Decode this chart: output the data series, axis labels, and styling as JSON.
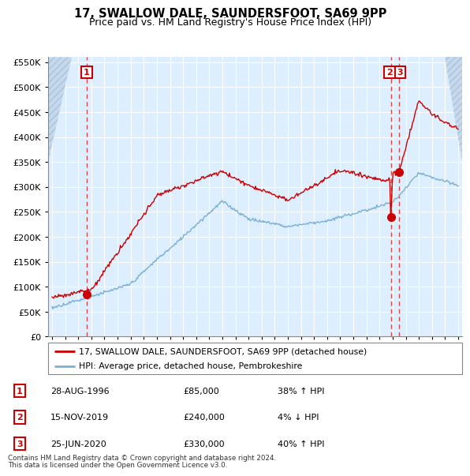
{
  "title": "17, SWALLOW DALE, SAUNDERSFOOT, SA69 9PP",
  "subtitle": "Price paid vs. HM Land Registry's House Price Index (HPI)",
  "legend_line1": "17, SWALLOW DALE, SAUNDERSFOOT, SA69 9PP (detached house)",
  "legend_line2": "HPI: Average price, detached house, Pembrokeshire",
  "footer1": "Contains HM Land Registry data © Crown copyright and database right 2024.",
  "footer2": "This data is licensed under the Open Government Licence v3.0.",
  "sales": [
    {
      "label": "1",
      "date_str": "28-AUG-1996",
      "price": 85000,
      "hpi_rel": "38% ↑ HPI",
      "year": 1996.65
    },
    {
      "label": "2",
      "date_str": "15-NOV-2019",
      "price": 240000,
      "hpi_rel": "4% ↓ HPI",
      "year": 2019.87
    },
    {
      "label": "3",
      "date_str": "25-JUN-2020",
      "price": 330000,
      "hpi_rel": "40% ↑ HPI",
      "year": 2020.48
    }
  ],
  "ylim": [
    0,
    560000
  ],
  "yticks": [
    0,
    50000,
    100000,
    150000,
    200000,
    250000,
    300000,
    350000,
    400000,
    450000,
    500000,
    550000
  ],
  "xlim_start": 1993.7,
  "xlim_end": 2025.3,
  "background_color": "#ffffff",
  "plot_bg": "#ddeeff",
  "grid_color": "#ffffff",
  "red_line_color": "#cc0000",
  "blue_line_color": "#7ab0d4",
  "dashed_line_color": "#dd3333",
  "box_color": "#cc0000",
  "hatch_color": "#c5d8ec"
}
